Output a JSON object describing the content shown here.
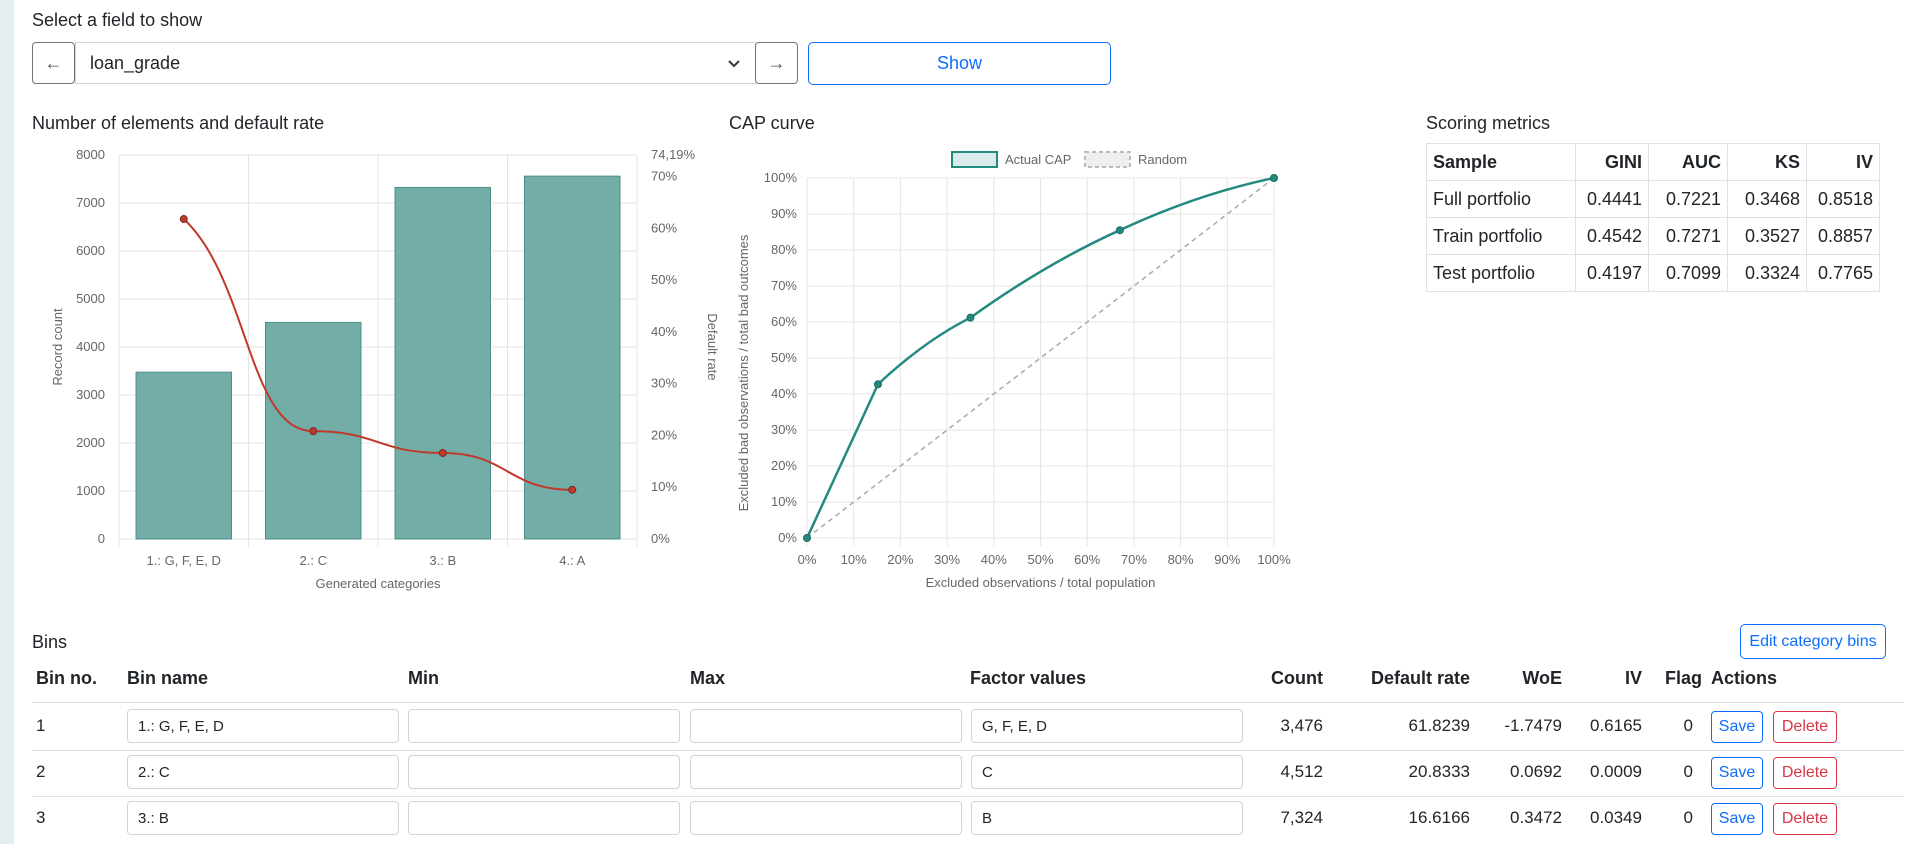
{
  "field_selector": {
    "label": "Select a field to show",
    "prev_label": "←",
    "next_label": "→",
    "selected": "loan_grade",
    "show_label": "Show"
  },
  "bar_chart": {
    "title": "Number of elements and default rate"
  },
  "cap_chart": {
    "title": "CAP curve"
  },
  "metrics": {
    "title": "Scoring metrics",
    "headers": [
      "Sample",
      "GINI",
      "AUC",
      "KS",
      "IV"
    ],
    "rows": [
      [
        "Full portfolio",
        "0.4441",
        "0.7221",
        "0.3468",
        "0.8518"
      ],
      [
        "Train portfolio",
        "0.4542",
        "0.7271",
        "0.3527",
        "0.8857"
      ],
      [
        "Test portfolio",
        "0.4197",
        "0.7099",
        "0.3324",
        "0.7765"
      ]
    ]
  },
  "bins": {
    "title": "Bins",
    "edit_label": "Edit category bins",
    "headers": {
      "bin_no": "Bin no.",
      "bin_name": "Bin name",
      "min": "Min",
      "max": "Max",
      "factor_values": "Factor values",
      "count": "Count",
      "default_rate": "Default rate",
      "woe": "WoE",
      "iv": "IV",
      "flag": "Flag",
      "actions": "Actions"
    },
    "rows": [
      {
        "no": "1",
        "name": "1.: G, F, E, D",
        "min": "",
        "max": "",
        "factors": "G, F, E, D",
        "count": "3,476",
        "rate": "61.8239",
        "woe": "-1.7479",
        "iv": "0.6165",
        "flag": "0",
        "save": "Save",
        "delete": "Delete"
      },
      {
        "no": "2",
        "name": "2.: C",
        "min": "",
        "max": "",
        "factors": "C",
        "count": "4,512",
        "rate": "20.8333",
        "woe": "0.0692",
        "iv": "0.0009",
        "flag": "0",
        "save": "Save",
        "delete": "Delete"
      },
      {
        "no": "3",
        "name": "3.: B",
        "min": "",
        "max": "",
        "factors": "B",
        "count": "7,324",
        "rate": "16.6166",
        "woe": "0.3472",
        "iv": "0.0349",
        "flag": "0",
        "save": "Save",
        "delete": "Delete"
      }
    ]
  },
  "chart_data": [
    {
      "type": "bar",
      "title": "Number of elements and default rate",
      "xlabel": "Generated categories",
      "ylabel": "Record count",
      "y2label": "Default rate",
      "categories": [
        "1.: G, F, E, D",
        "2.: C",
        "3.: B",
        "4.: A"
      ],
      "ylim": [
        0,
        8000
      ],
      "y2lim": [
        0,
        74.19
      ],
      "y_ticks": [
        "0",
        "1000",
        "2000",
        "3000",
        "4000",
        "5000",
        "6000",
        "7000",
        "8000"
      ],
      "y2_ticks": [
        "0%",
        "10%",
        "20%",
        "30%",
        "40%",
        "50%",
        "60%",
        "70%",
        "74,19%"
      ],
      "series": [
        {
          "name": "Record count",
          "type": "bar",
          "values": [
            3476,
            4512,
            7324,
            7560
          ],
          "color": "#72ada8"
        },
        {
          "name": "Default rate",
          "type": "line",
          "axis": "right",
          "values": [
            61.82,
            20.83,
            16.62,
            9.5
          ],
          "color": "#c0392b"
        }
      ],
      "grid": true
    },
    {
      "type": "line",
      "title": "CAP curve",
      "xlabel": "Excluded observations / total population",
      "ylabel": "Excluded bad observations / total bad outcomes",
      "xlim": [
        0,
        100
      ],
      "ylim": [
        0,
        100
      ],
      "x_ticks": [
        "0%",
        "10%",
        "20%",
        "30%",
        "40%",
        "50%",
        "60%",
        "70%",
        "80%",
        "90%",
        "100%"
      ],
      "y_ticks": [
        "0%",
        "10%",
        "20%",
        "30%",
        "40%",
        "50%",
        "60%",
        "70%",
        "80%",
        "90%",
        "100%"
      ],
      "legend": "top",
      "series": [
        {
          "name": "Actual CAP",
          "x": [
            0,
            15.2,
            35,
            67,
            100
          ],
          "y": [
            0,
            42.7,
            61.2,
            85.5,
            100
          ],
          "color": "#238a7f"
        },
        {
          "name": "Random",
          "x": [
            0,
            100
          ],
          "y": [
            0,
            100
          ],
          "color": "#aaaaaa",
          "dashed": true
        }
      ],
      "grid": true
    }
  ]
}
